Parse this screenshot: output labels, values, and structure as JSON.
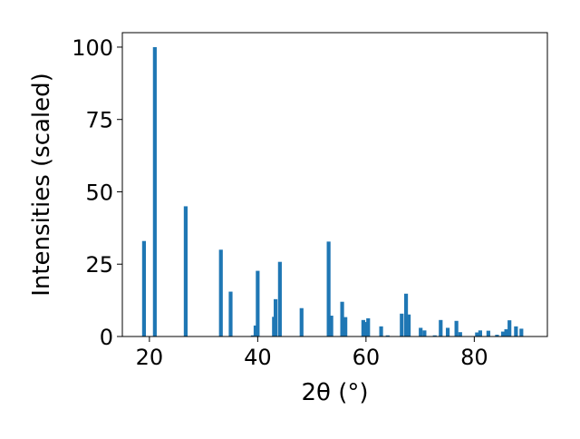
{
  "chart_data": {
    "type": "bar",
    "title": "",
    "xlabel": "2θ (°)",
    "ylabel": "Intensities (scaled)",
    "xlim": [
      15,
      93.5
    ],
    "ylim": [
      0,
      105
    ],
    "x_ticks": [
      20,
      40,
      60,
      80
    ],
    "y_ticks": [
      0,
      25,
      50,
      75,
      100
    ],
    "x_tick_labels": [
      "20",
      "40",
      "60",
      "80"
    ],
    "y_tick_labels": [
      "0",
      "25",
      "50",
      "75",
      "100"
    ],
    "grid": false,
    "bar_color": "#1f77b4",
    "bar_width": 0.7,
    "x": [
      19.0,
      21.0,
      26.7,
      33.2,
      35.0,
      39.1,
      39.6,
      40.0,
      43.0,
      43.3,
      44.1,
      48.1,
      53.1,
      53.6,
      55.6,
      56.2,
      59.5,
      60.0,
      60.4,
      62.8,
      64.0,
      66.6,
      67.4,
      67.9,
      70.1,
      70.8,
      72.7,
      73.8,
      75.1,
      76.7,
      77.4,
      80.5,
      81.1,
      82.6,
      84.2,
      85.3,
      85.9,
      86.5,
      87.7,
      88.7
    ],
    "values": [
      33,
      100,
      45,
      30,
      15.5,
      0.4,
      3.8,
      22.7,
      6.8,
      12.9,
      25.8,
      9.8,
      32.8,
      7.2,
      12,
      6.7,
      5.7,
      5,
      6.3,
      3.5,
      0.4,
      7.9,
      14.8,
      7.6,
      3,
      2.1,
      0.4,
      5.7,
      3,
      5.4,
      1.5,
      1.4,
      2.1,
      2,
      0.6,
      1.7,
      2.5,
      5.6,
      3.5,
      2.7
    ]
  }
}
